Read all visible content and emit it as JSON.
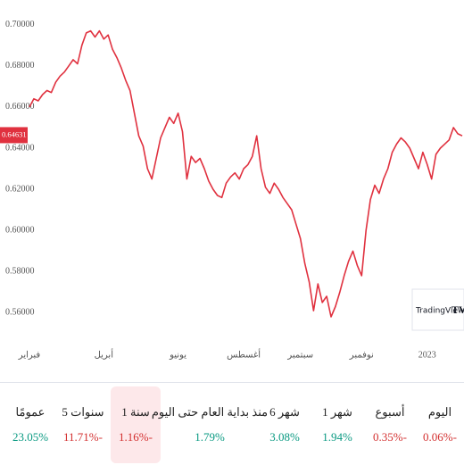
{
  "chart_data": {
    "type": "line",
    "color": "#e0313f",
    "categories": [
      "فبراير",
      null,
      null,
      null,
      null,
      null,
      null,
      null,
      null,
      null,
      null,
      null,
      null,
      null,
      null,
      null,
      null,
      "أبريل",
      null,
      null,
      null,
      null,
      null,
      null,
      null,
      null,
      null,
      null,
      null,
      null,
      null,
      null,
      null,
      null,
      "يونيو",
      null,
      null,
      null,
      null,
      null,
      null,
      null,
      null,
      null,
      null,
      null,
      null,
      null,
      null,
      "أغسطس",
      null,
      null,
      null,
      null,
      null,
      null,
      null,
      null,
      null,
      null,
      null,
      null,
      "سبتمبر",
      null,
      null,
      null,
      null,
      null,
      null,
      null,
      null,
      null,
      null,
      null,
      null,
      null,
      "نوفمبر",
      null,
      null,
      null,
      null,
      null,
      null,
      null,
      null,
      null,
      null,
      null,
      null,
      null,
      null,
      "2023",
      null,
      null,
      null,
      null,
      null,
      null,
      null,
      null
    ],
    "values": [
      0.66,
      0.664,
      0.663,
      0.666,
      0.668,
      0.667,
      0.672,
      0.675,
      0.677,
      0.68,
      0.683,
      0.681,
      0.69,
      0.696,
      0.697,
      0.694,
      0.697,
      0.693,
      0.695,
      0.688,
      0.684,
      0.679,
      0.673,
      0.668,
      0.657,
      0.646,
      0.641,
      0.63,
      0.625,
      0.635,
      0.645,
      0.65,
      0.655,
      0.652,
      0.657,
      0.648,
      0.625,
      0.636,
      0.633,
      0.635,
      0.63,
      0.624,
      0.62,
      0.617,
      0.616,
      0.623,
      0.626,
      0.628,
      0.625,
      0.63,
      0.632,
      0.636,
      0.646,
      0.63,
      0.621,
      0.618,
      0.623,
      0.62,
      0.616,
      0.613,
      0.61,
      0.603,
      0.596,
      0.584,
      0.575,
      0.561,
      0.574,
      0.565,
      0.568,
      0.558,
      0.563,
      0.57,
      0.578,
      0.585,
      0.59,
      0.583,
      0.578,
      0.6,
      0.615,
      0.622,
      0.618,
      0.625,
      0.63,
      0.638,
      0.642,
      0.645,
      0.643,
      0.64,
      0.635,
      0.63,
      0.638,
      0.632,
      0.625,
      0.637,
      0.64,
      0.642,
      0.644,
      0.65,
      0.647,
      0.646
    ],
    "ylim": [
      0.545,
      0.712
    ],
    "yticks": [
      {
        "value": 0.7,
        "label": "0.70000"
      },
      {
        "value": 0.68,
        "label": "0.68000"
      },
      {
        "value": 0.66,
        "label": "0.66000"
      },
      {
        "value": 0.64,
        "label": "0.64000"
      },
      {
        "value": 0.62,
        "label": "0.62000"
      },
      {
        "value": 0.6,
        "label": "0.60000"
      },
      {
        "value": 0.58,
        "label": "0.58000"
      },
      {
        "value": 0.56,
        "label": "0.56000"
      }
    ],
    "last_value": 0.64631,
    "watermark": "TradingView"
  },
  "performance": [
    {
      "label": "اليوم",
      "value": "0.06%-",
      "color": "#d32f2f"
    },
    {
      "label": "أسبوع",
      "value": "0.35%-",
      "color": "#d32f2f"
    },
    {
      "label": "1 شهر",
      "value": "1.94%",
      "color": "#089981"
    },
    {
      "label": "6 شهر",
      "value": "3.08%",
      "color": "#089981"
    },
    {
      "label": "منذ بداية العام حتى اليوم",
      "value": "1.79%",
      "color": "#089981"
    },
    {
      "label": "1 سنة",
      "value": "1.16%-",
      "color": "#d32f2f",
      "selected": true
    },
    {
      "label": "5 سنوات",
      "value": "11.71%-",
      "color": "#d32f2f"
    },
    {
      "label": "عمومًا",
      "value": "23.05%",
      "color": "#089981"
    }
  ]
}
